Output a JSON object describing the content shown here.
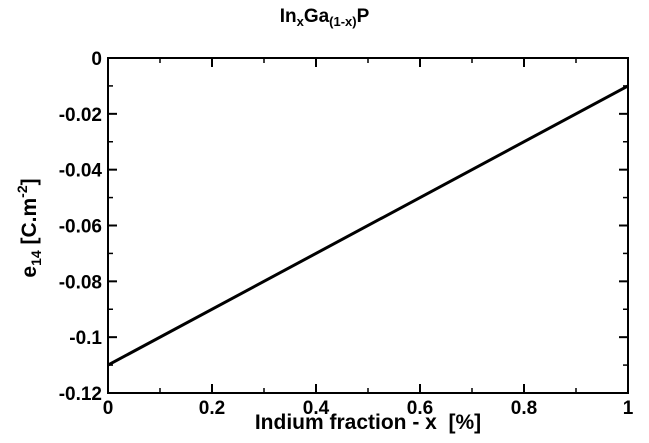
{
  "chart_data": {
    "type": "line",
    "title": {
      "base1": "In",
      "sub1": "x",
      "base2": "Ga",
      "sub2": "(1-x)",
      "base3": "P"
    },
    "xlabel": "Indium fraction - x  [%]",
    "ylabel": {
      "base": "e",
      "sub": "14",
      "mid": " [C.m",
      "sup": "-2",
      "end": "]"
    },
    "xlim": [
      0,
      1
    ],
    "ylim": [
      -0.12,
      0
    ],
    "x_ticks": [
      0,
      0.2,
      0.4,
      0.6,
      0.8,
      1
    ],
    "x_tick_labels": [
      "0",
      "0.2",
      "0.4",
      "0.6",
      "0.8",
      "1"
    ],
    "y_ticks": [
      0,
      -0.02,
      -0.04,
      -0.06,
      -0.08,
      -0.1,
      -0.12
    ],
    "y_tick_labels": [
      "0",
      "-0.02",
      "-0.04",
      "-0.06",
      "-0.08",
      "-0.1",
      "-0.12"
    ],
    "grid": false,
    "series": [
      {
        "x": [
          0,
          1
        ],
        "y": [
          -0.11,
          -0.01
        ],
        "color": "#000000"
      }
    ]
  }
}
